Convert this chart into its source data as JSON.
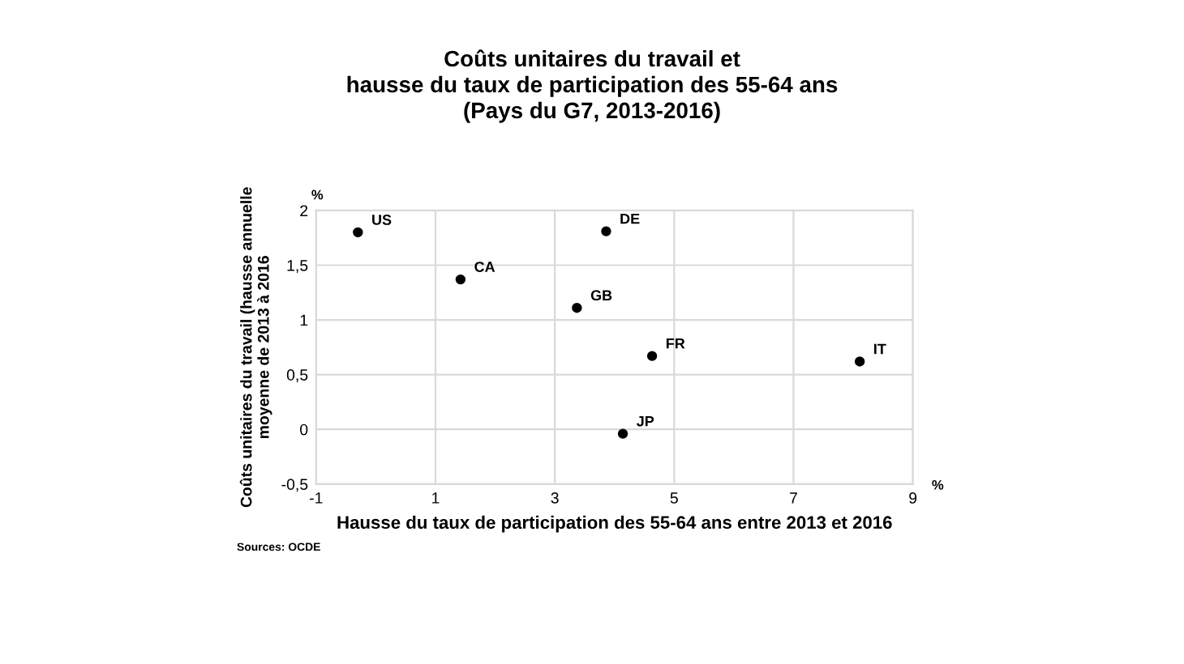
{
  "chart_data": {
    "type": "scatter",
    "title": "Coûts unitaires du travail et\nhausse du taux de participation des 55-64 ans\n(Pays du G7, 2013-2016)",
    "xlabel": "Hausse du taux de participation des 55-64 ans entre 2013 et 2016",
    "ylabel": "Coûts unitaires du travail (hausse annuelle\nmoyenne de 2013 à 2016",
    "x": [
      -0.3,
      1.42,
      3.86,
      3.37,
      4.63,
      8.11,
      4.14
    ],
    "series": [
      {
        "color": "#000000",
        "values": [
          1.8,
          1.37,
          1.81,
          1.11,
          0.67,
          0.62,
          -0.04
        ]
      }
    ],
    "marker": "circle",
    "xlim": [
      -1,
      9
    ],
    "xticks": [
      -1,
      1,
      3,
      5,
      7,
      9
    ],
    "ylim": [
      -0.5,
      2
    ],
    "yticks": [
      {
        "value": -0.5,
        "label": "-0,5"
      },
      0,
      {
        "value": 0.5,
        "label": "0,5"
      },
      1,
      {
        "value": 1.5,
        "label": "1,5"
      },
      2
    ],
    "grid": true,
    "annotations": [
      {
        "text": "US",
        "x": -0.3,
        "y": 1.8
      },
      {
        "text": "CA",
        "x": 1.42,
        "y": 1.37
      },
      {
        "text": "DE",
        "x": 3.86,
        "y": 1.81
      },
      {
        "text": "GB",
        "x": 3.37,
        "y": 1.11
      },
      {
        "text": "FR",
        "x": 4.63,
        "y": 0.67
      },
      {
        "text": "IT",
        "x": 8.11,
        "y": 0.62
      },
      {
        "text": "JP",
        "x": 4.14,
        "y": -0.04
      },
      "%",
      "%",
      "Sources: OCDE"
    ]
  }
}
